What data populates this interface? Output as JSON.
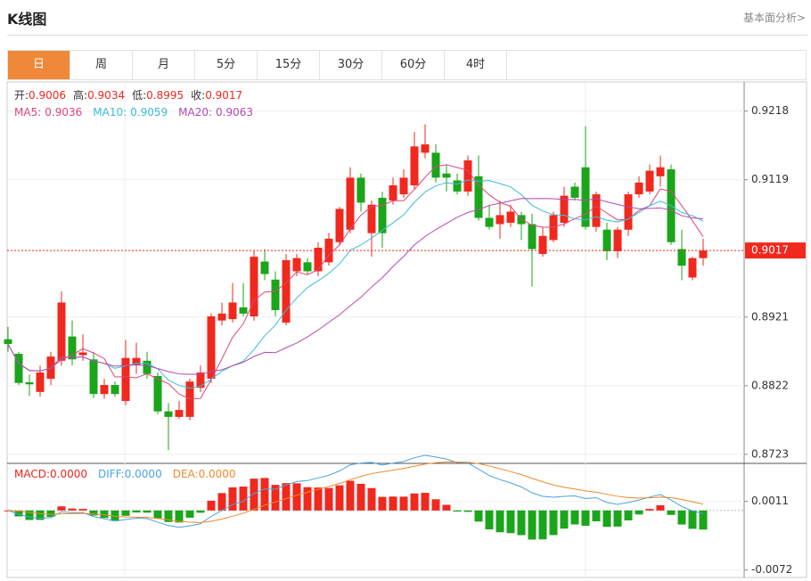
{
  "header": {
    "title": "K线图",
    "link": "基本面分析>"
  },
  "tabs": [
    "日",
    "周",
    "月",
    "5分",
    "15分",
    "30分",
    "60分",
    "4时"
  ],
  "active_tab": 0,
  "chart_data": {
    "type": "candlestick",
    "info": [
      {
        "label": "开:",
        "value": 0.9006
      },
      {
        "label": "高:",
        "value": 0.9034
      },
      {
        "label": "低:",
        "value": 0.8995
      },
      {
        "label": "收:",
        "value": 0.9017
      }
    ],
    "ma_legend": [
      {
        "name": "MA5:",
        "value": 0.9036,
        "color": "#e0457b"
      },
      {
        "name": "MA10:",
        "value": 0.9059,
        "color": "#3bbcd6"
      },
      {
        "name": "MA20:",
        "value": 0.9063,
        "color": "#b34ab0"
      }
    ],
    "up_color": "#f0281e",
    "down_color": "#1aa51a",
    "open": [
      0.8889,
      0.8868,
      0.8827,
      0.8813,
      0.8832,
      0.8858,
      0.8893,
      0.8866,
      0.886,
      0.881,
      0.8823,
      0.88,
      0.8852,
      0.8858,
      0.8836,
      0.8785,
      0.8777,
      0.8777,
      0.8819,
      0.8832,
      0.8916,
      0.8918,
      0.8935,
      0.8922,
      0.9001,
      0.8975,
      0.8913,
      0.8987,
      0.9,
      0.8987,
      0.9,
      0.9029,
      0.9047,
      0.9122,
      0.9042,
      0.9093,
      0.9089,
      0.9098,
      0.9111,
      0.9158,
      0.9158,
      0.9128,
      0.9118,
      0.9102,
      0.9124,
      0.9064,
      0.9055,
      0.9057,
      0.9068,
      0.9055,
      0.9012,
      0.9032,
      0.9057,
      0.9109,
      0.9137,
      0.9051,
      0.9047,
      0.9016,
      0.9047,
      0.9098,
      0.9102,
      0.9124,
      0.9134,
      0.9019,
      0.8978,
      0.9006
    ],
    "high": [
      0.8907,
      0.8871,
      0.8838,
      0.8851,
      0.8871,
      0.8958,
      0.8916,
      0.8896,
      0.8871,
      0.8832,
      0.8828,
      0.8888,
      0.8884,
      0.8871,
      0.8841,
      0.8797,
      0.88,
      0.8832,
      0.8851,
      0.8926,
      0.8942,
      0.897,
      0.897,
      0.9016,
      0.9019,
      0.8987,
      0.9012,
      0.9012,
      0.9006,
      0.9029,
      0.9042,
      0.908,
      0.9137,
      0.9128,
      0.9089,
      0.9102,
      0.9122,
      0.9134,
      0.9188,
      0.9199,
      0.917,
      0.9141,
      0.9128,
      0.9154,
      0.9154,
      0.9083,
      0.9089,
      0.9083,
      0.9073,
      0.907,
      0.9051,
      0.9073,
      0.9109,
      0.9115,
      0.9196,
      0.9102,
      0.9057,
      0.9051,
      0.9102,
      0.9124,
      0.9141,
      0.9154,
      0.9141,
      0.9047,
      0.9008,
      0.9034
    ],
    "low": [
      0.8871,
      0.8823,
      0.8807,
      0.8806,
      0.8823,
      0.8851,
      0.8851,
      0.8858,
      0.8804,
      0.8803,
      0.8806,
      0.8794,
      0.8839,
      0.8832,
      0.8781,
      0.8729,
      0.8774,
      0.8772,
      0.8813,
      0.8826,
      0.8909,
      0.8913,
      0.8922,
      0.8916,
      0.8974,
      0.8922,
      0.8909,
      0.898,
      0.8983,
      0.898,
      0.8995,
      0.9025,
      0.9042,
      0.9073,
      0.9008,
      0.9021,
      0.9083,
      0.9093,
      0.9106,
      0.915,
      0.9115,
      0.9102,
      0.9098,
      0.9096,
      0.906,
      0.9047,
      0.9034,
      0.9051,
      0.9032,
      0.8965,
      0.9008,
      0.9029,
      0.9051,
      0.9089,
      0.9047,
      0.9044,
      0.9003,
      0.9006,
      0.9038,
      0.9093,
      0.9098,
      0.9109,
      0.9025,
      0.8974,
      0.8974,
      0.8995
    ],
    "close": [
      0.8882,
      0.8826,
      0.8824,
      0.8841,
      0.8864,
      0.8942,
      0.886,
      0.887,
      0.881,
      0.8823,
      0.881,
      0.8862,
      0.8862,
      0.8839,
      0.8785,
      0.8777,
      0.8787,
      0.8828,
      0.8841,
      0.8922,
      0.8926,
      0.8942,
      0.8926,
      0.9008,
      0.8983,
      0.8931,
      0.9003,
      0.9006,
      0.8987,
      0.9021,
      0.9034,
      0.9077,
      0.9122,
      0.9086,
      0.9083,
      0.9042,
      0.9111,
      0.9122,
      0.9167,
      0.917,
      0.9122,
      0.9122,
      0.9102,
      0.9147,
      0.9064,
      0.9051,
      0.9068,
      0.9073,
      0.9055,
      0.9019,
      0.9038,
      0.9068,
      0.9096,
      0.9093,
      0.9051,
      0.9098,
      0.9016,
      0.9047,
      0.9098,
      0.9115,
      0.9132,
      0.9137,
      0.9029,
      0.8995,
      0.9006,
      0.9017
    ],
    "ylim": [
      0.871,
      0.926
    ],
    "yticks": [
      0.8723,
      0.8822,
      0.8921,
      0.9119,
      0.9218
    ],
    "last_price": 0.9017,
    "macd": {
      "legend": [
        {
          "text": "MACD:0.0000",
          "color": "#e8251d"
        },
        {
          "text": "DIFF:0.0000",
          "color": "#4aa3e0"
        },
        {
          "text": "DEA:0.0000",
          "color": "#f08a2c"
        }
      ],
      "ylim": [
        -0.0081,
        0.0057
      ],
      "yticks": [
        -0.0072,
        0.0011
      ]
    }
  }
}
